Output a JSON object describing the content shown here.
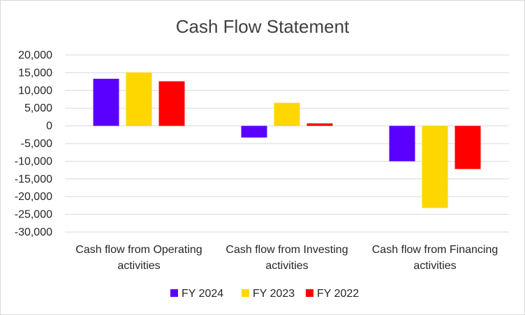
{
  "chart_data": {
    "type": "bar",
    "title": "Cash Flow Statement",
    "xlabel": "",
    "ylabel": "",
    "ylim": [
      -30000,
      20000
    ],
    "yticks": [
      20000,
      15000,
      10000,
      5000,
      0,
      -5000,
      -10000,
      -15000,
      -20000,
      -25000,
      -30000
    ],
    "ytick_labels": [
      "20,000",
      "15,000",
      "10,000",
      "5,000",
      "0",
      "-5,000",
      "-10,000",
      "-15,000",
      "-20,000",
      "-25,000",
      "-30,000"
    ],
    "categories": [
      [
        "Cash flow from Operating",
        "activities"
      ],
      [
        "Cash flow from Investing",
        "activities"
      ],
      [
        "Cash flow from Financing",
        "activities"
      ]
    ],
    "series": [
      {
        "name": "FY 2024",
        "color": "#5a00ff",
        "values": [
          13300,
          -3300,
          -10000
        ]
      },
      {
        "name": "FY 2023",
        "color": "#ffd700",
        "values": [
          15100,
          6500,
          -23200
        ]
      },
      {
        "name": "FY 2022",
        "color": "#ff0000",
        "values": [
          12600,
          700,
          -12200
        ]
      }
    ],
    "grid": true,
    "legend": "bottom"
  }
}
